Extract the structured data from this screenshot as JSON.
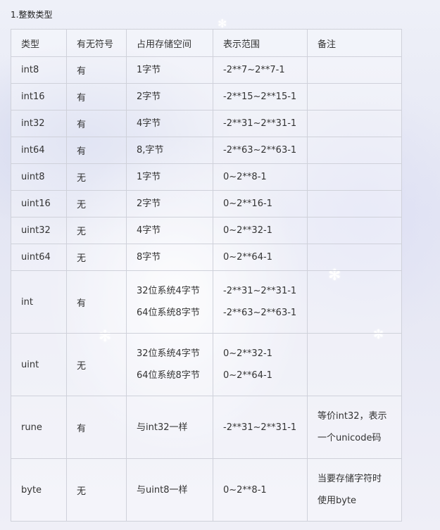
{
  "heading": "1.整数类型",
  "table": {
    "headers": [
      "类型",
      "有无符号",
      "占用存储空间",
      "表示范围",
      "备注"
    ],
    "rows": [
      {
        "type": "int8",
        "signed": "有",
        "size": [
          "1字节"
        ],
        "range": [
          "-2**7~2**7-1"
        ],
        "note": []
      },
      {
        "type": "int16",
        "signed": "有",
        "size": [
          "2字节"
        ],
        "range": [
          "-2**15~2**15-1"
        ],
        "note": []
      },
      {
        "type": "int32",
        "signed": "有",
        "size": [
          "4字节"
        ],
        "range": [
          "-2**31~2**31-1"
        ],
        "note": []
      },
      {
        "type": "int64",
        "signed": "有",
        "size": [
          "8,字节"
        ],
        "range": [
          "-2**63~2**63-1"
        ],
        "note": []
      },
      {
        "type": "uint8",
        "signed": "无",
        "size": [
          "1字节"
        ],
        "range": [
          "0~2**8-1"
        ],
        "note": []
      },
      {
        "type": "uint16",
        "signed": "无",
        "size": [
          "2字节"
        ],
        "range": [
          "0~2**16-1"
        ],
        "note": []
      },
      {
        "type": "uint32",
        "signed": "无",
        "size": [
          "4字节"
        ],
        "range": [
          "0~2**32-1"
        ],
        "note": []
      },
      {
        "type": "uint64",
        "signed": "无",
        "size": [
          "8字节"
        ],
        "range": [
          "0~2**64-1"
        ],
        "note": []
      },
      {
        "type": "int",
        "signed": "有",
        "size": [
          "32位系统4字节",
          "64位系统8字节"
        ],
        "range": [
          "-2**31~2**31-1",
          "-2**63~2**63-1"
        ],
        "note": []
      },
      {
        "type": "uint",
        "signed": "无",
        "size": [
          "32位系统4字节",
          "64位系统8字节"
        ],
        "range": [
          "0~2**32-1",
          "0~2**64-1"
        ],
        "note": []
      },
      {
        "type": "rune",
        "signed": "有",
        "size": [
          "与int32一样"
        ],
        "range": [
          "-2**31~2**31-1"
        ],
        "note": [
          "等价int32，表示",
          "一个unicode码"
        ]
      },
      {
        "type": "byte",
        "signed": "无",
        "size": [
          "与uint8一样"
        ],
        "range": [
          "0~2**8-1"
        ],
        "note": [
          "当要存储字符时",
          "使用byte"
        ]
      }
    ]
  }
}
